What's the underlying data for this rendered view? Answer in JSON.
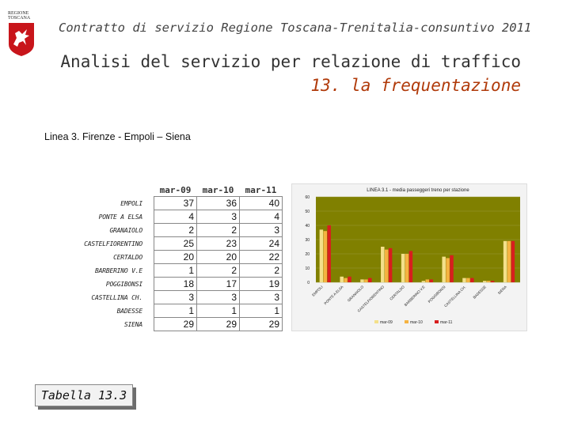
{
  "logo": {
    "line1": "REGIONE",
    "line2": "TOSCANA"
  },
  "header": {
    "text": "Contratto di servizio Regione Toscana-Trenitalia-consuntivo 2011"
  },
  "title": {
    "line1": "Analisi del servizio per relazione di traffico",
    "line2": "13. la frequentazione"
  },
  "subtitle": "Linea 3. Firenze - Empoli – Siena",
  "table": {
    "columns": [
      "mar-09",
      "mar-10",
      "mar-11"
    ],
    "rows": [
      {
        "station": "EMPOLI",
        "values": [
          37,
          36,
          40
        ]
      },
      {
        "station": "PONTE A ELSA",
        "values": [
          4,
          3,
          4
        ]
      },
      {
        "station": "GRANAIOLO",
        "values": [
          2,
          2,
          3
        ]
      },
      {
        "station": "CASTELFIORENTINO",
        "values": [
          25,
          23,
          24
        ]
      },
      {
        "station": "CERTALDO",
        "values": [
          20,
          20,
          22
        ]
      },
      {
        "station": "BARBERINO V.E",
        "values": [
          1,
          2,
          2
        ]
      },
      {
        "station": "POGGIBONSI",
        "values": [
          18,
          17,
          19
        ]
      },
      {
        "station": "CASTELLINA CH.",
        "values": [
          3,
          3,
          3
        ]
      },
      {
        "station": "BADESSE",
        "values": [
          1,
          1,
          1
        ]
      },
      {
        "station": "SIENA",
        "values": [
          29,
          29,
          29
        ]
      }
    ]
  },
  "tabella_label": "Tabella 13.3",
  "chart_data": {
    "type": "bar",
    "title": "LINEA 3.1 - media passeggeri treno per stazione",
    "categories": [
      "EMPOLI",
      "PONTE A ELSA",
      "GRANAIOLO",
      "CASTELFIORENTINO",
      "CERTALDO",
      "BARBERINO V.E",
      "POGGIBONSI",
      "CASTELLINA CH.",
      "BADESSE",
      "SIENA"
    ],
    "series": [
      {
        "name": "mar-09",
        "color": "#f3e08a",
        "values": [
          37,
          4,
          2,
          25,
          20,
          1,
          18,
          3,
          1,
          29
        ]
      },
      {
        "name": "mar-10",
        "color": "#f5b341",
        "values": [
          36,
          3,
          2,
          23,
          20,
          2,
          17,
          3,
          1,
          29
        ]
      },
      {
        "name": "mar-11",
        "color": "#d81e1e",
        "values": [
          40,
          4,
          3,
          24,
          22,
          2,
          19,
          3,
          1,
          29
        ]
      }
    ],
    "ylim": [
      0,
      60
    ],
    "yticks": [
      0,
      10,
      20,
      30,
      40,
      50,
      60
    ],
    "plot_bg": "#808000",
    "grid": true,
    "legend": "bottom"
  }
}
